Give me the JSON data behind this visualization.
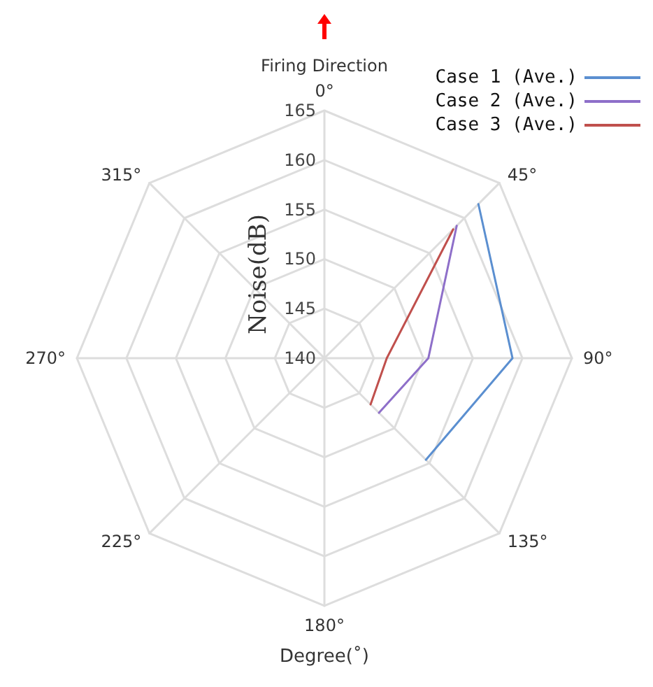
{
  "chart_data": {
    "type": "radar",
    "xlabel": "Degree(˚)",
    "ylabel": "Noise(dB)",
    "categories": [
      "0°",
      "45°",
      "90°",
      "135°",
      "180°",
      "225°",
      "270°",
      "315°"
    ],
    "ylim": [
      140,
      165
    ],
    "yticks": [
      140,
      145,
      150,
      155,
      160,
      165
    ],
    "grid": true,
    "legend": "top right",
    "marker": "none",
    "line_style": "solid",
    "annotations": [
      "Firing Direction"
    ],
    "series": [
      {
        "name": "Case 1 (Ave.)",
        "color": "#5b8fd0",
        "values": [
          null,
          162,
          159,
          154.5,
          null,
          null,
          null,
          null
        ]
      },
      {
        "name": "Case 2 (Ave.)",
        "color": "#8e6fc9",
        "values": [
          null,
          158.9,
          150.5,
          147.8,
          null,
          null,
          null,
          null
        ]
      },
      {
        "name": "Case 3 (Ave.)",
        "color": "#c0504d",
        "values": [
          null,
          158.4,
          146.3,
          146.6,
          null,
          null,
          null,
          null
        ]
      }
    ]
  }
}
